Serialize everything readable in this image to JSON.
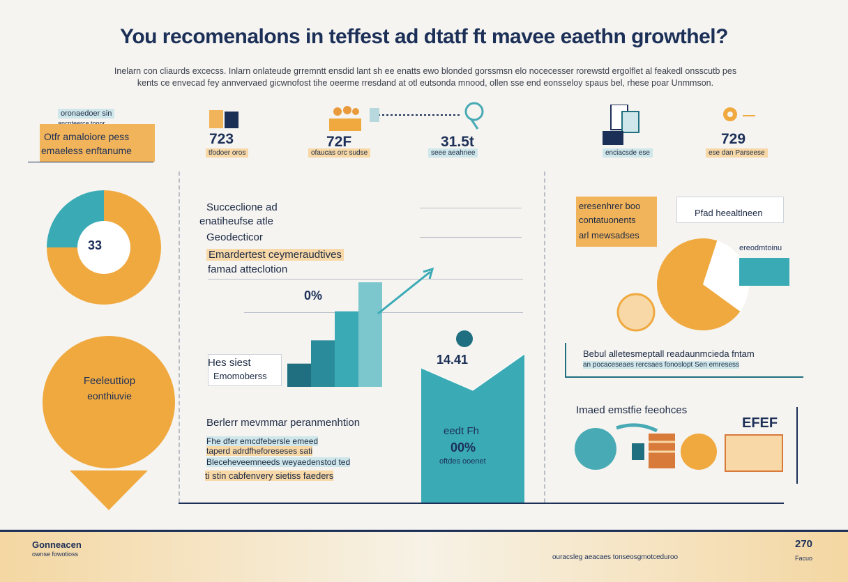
{
  "header": {
    "title": "You recomenalons in teffest ad dtatf ft mavee eaethn growthel?",
    "intro_line1": "Inelarn con cliaurds excecss. Inlarn onlateude grremntt ensdid lant sh ee enatts ewo blonded gorssmsn elo nocecesser rorewstd ergolflet al feakedl onsscutb pes",
    "intro_line2": "kents ce envecad fey annvervaed gicwnofost tihe oeerme rresdand at otl eutsonda mnood, ollen sse end eonsseloy spaus bel, rhese poar Unmmson."
  },
  "stats": [
    {
      "label_top": "oronaedoer sin",
      "label_sub": "ancnteerce tooor",
      "value": "",
      "caption": ""
    },
    {
      "label_top": "",
      "label_sub": "",
      "value": "723",
      "caption": "tfodoer oros"
    },
    {
      "label_top": "",
      "label_sub": "",
      "value": "72F",
      "caption": "ofaucas orc sudse"
    },
    {
      "label_top": "",
      "label_sub": "",
      "value": "31.5t",
      "caption": "seee aeahnee"
    },
    {
      "label_top": "",
      "label_sub": "",
      "value": "",
      "caption": "enciacsde ese"
    },
    {
      "label_top": "",
      "label_sub": "",
      "value": "729",
      "caption": "ese dan Parseese"
    }
  ],
  "left_panel": {
    "headline_line1": "Otfr amaloiore pess",
    "headline_line2": "emaeless enftanume",
    "donut_value": "33",
    "donut_segments": [
      {
        "name": "orange",
        "color": "#f0a93f",
        "fraction": 0.75
      },
      {
        "name": "teal",
        "color": "#3aaab4",
        "fraction": 0.25
      }
    ],
    "drop_line1": "Feeleuttiop",
    "drop_line2": "eonthiuvie"
  },
  "center_panel": {
    "heading1": "Succeclione ad",
    "heading2": "enatiheufse atle",
    "heading3": "Geodecticor",
    "heading4": "Emardertest ceymeraudtives",
    "heading5": "famad atteclotion",
    "percent_label": "0%",
    "bar_values": [
      4,
      8,
      13,
      18
    ],
    "side_label1": "Hes siest",
    "side_label2": "Emomoberss",
    "bottom_heading": "Berlerr mevmmar peranmenhtion",
    "bottom_line1": "Fhe dfer emcdfebersle emeed",
    "bottom_line2": "taperd adrdfheforeseses sati",
    "bottom_line3": "Bleceheveemneeds weyaedenstod ted",
    "bottom_line4": "ti stin cabfenvery sietiss faeders",
    "teal_box_value": "14.41",
    "teal_box_line1": "eedt Fh",
    "teal_box_pct": "00%",
    "teal_box_line2": "oftdes ooenet"
  },
  "right_panel": {
    "box_line1": "eresenhrer boo",
    "box_line2": "contatuonents",
    "box_line3": "arl mewsadses",
    "pill_label": "Pfad heealtlneen",
    "chart_label": "ereodmtoinu",
    "desc_line1": "Bebul alletesmeptall readaunmcieda fntam",
    "desc_line2": "an pocaceseaes rercsaes fonoslopt Sen emresess",
    "bottom_heading": "Imaed emstfie feeohces",
    "badge": "EFEF",
    "pie_segments": [
      {
        "name": "orange",
        "color": "#f0a93f",
        "fraction": 0.7
      },
      {
        "name": "white",
        "color": "#ffffff",
        "fraction": 0.3
      }
    ]
  },
  "footer": {
    "left_title": "Gonneacen",
    "left_sub": "ownse fowotioss",
    "center_text": "ouracsleg aeacaes tonseosgmotceduroo",
    "right_num": "270",
    "right_sub": "Facuo"
  },
  "colors": {
    "navy": "#1c2f57",
    "orange": "#f0a93f",
    "teal": "#3aaab4",
    "dark_teal": "#1f6f80",
    "background": "#f5f4f1"
  }
}
